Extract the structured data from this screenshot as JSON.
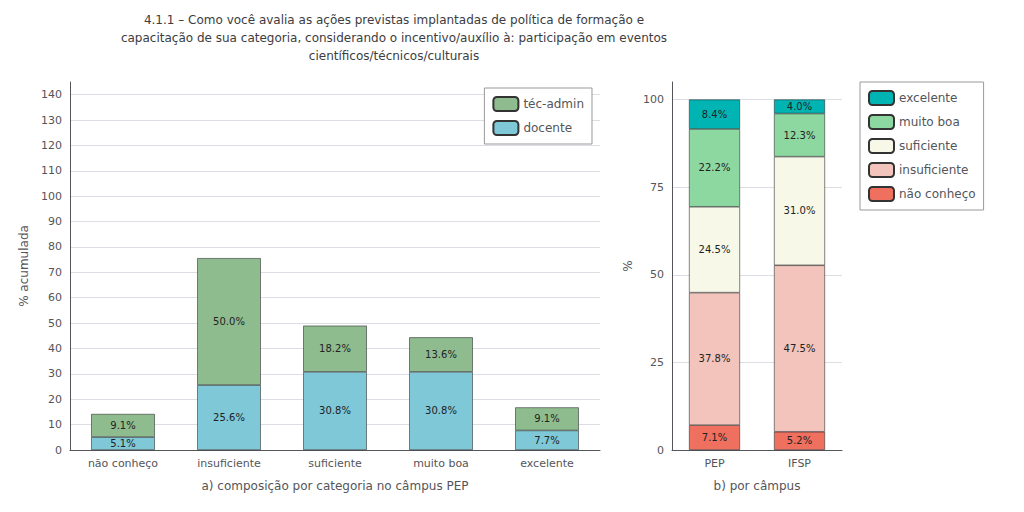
{
  "chart_data": [
    {
      "type": "bar",
      "stacked": true,
      "title": "4.1.1 – Como você avalia as ações previstas implantadas de política de formação e\ncapacitação de sua categoria, considerando o incentivo/auxílio à: participação em eventos\ncientíficos/técnicos/culturais",
      "categories": [
        "não conheço",
        "insuficiente",
        "suficiente",
        "muito boa",
        "excelente"
      ],
      "series": [
        {
          "name": "docente",
          "color": "#7ec8d8",
          "values": [
            5.1,
            25.6,
            30.8,
            30.8,
            7.7
          ],
          "value_labels": [
            "5.1%",
            "25.6%",
            "30.8%",
            "30.8%",
            "7.7%"
          ]
        },
        {
          "name": "téc-admin",
          "color": "#8fbc8f",
          "values": [
            9.1,
            50.0,
            18.2,
            13.6,
            9.1
          ],
          "value_labels": [
            "9.1%",
            "50.0%",
            "18.2%",
            "13.6%",
            "9.1%"
          ]
        }
      ],
      "xlabel": "a) composição por categoria no câmpus PEP",
      "ylabel": "% acumulada",
      "ylim": [
        0,
        145
      ],
      "yticks": [
        0,
        10,
        20,
        30,
        40,
        50,
        60,
        70,
        80,
        90,
        100,
        110,
        120,
        130,
        140
      ],
      "grid": true,
      "legend": "upper right",
      "data_labels": true
    },
    {
      "type": "bar",
      "stacked": true,
      "categories": [
        "PEP",
        "IFSP"
      ],
      "series": [
        {
          "name": "não conheço",
          "color": "#f07060",
          "values": [
            7.1,
            5.2
          ],
          "value_labels": [
            "7.1%",
            "5.2%"
          ]
        },
        {
          "name": "insuficiente",
          "color": "#f2c4bc",
          "values": [
            37.8,
            47.5
          ],
          "value_labels": [
            "37.8%",
            "47.5%"
          ]
        },
        {
          "name": "suficiente",
          "color": "#f8f8e8",
          "values": [
            24.5,
            31.0
          ],
          "value_labels": [
            "24.5%",
            "31.0%"
          ]
        },
        {
          "name": "muito boa",
          "color": "#8dd8a0",
          "values": [
            22.2,
            12.3
          ],
          "value_labels": [
            "22.2%",
            "12.3%"
          ]
        },
        {
          "name": "excelente",
          "color": "#00b4b4",
          "values": [
            8.4,
            4.0
          ],
          "value_labels": [
            "8.4%",
            "4.0%"
          ]
        }
      ],
      "xlabel": "b) por câmpus",
      "ylabel": "%",
      "ylim": [
        0,
        105
      ],
      "yticks": [
        0,
        25,
        50,
        75,
        100
      ],
      "grid": true,
      "legend": "right",
      "data_labels": true
    }
  ]
}
